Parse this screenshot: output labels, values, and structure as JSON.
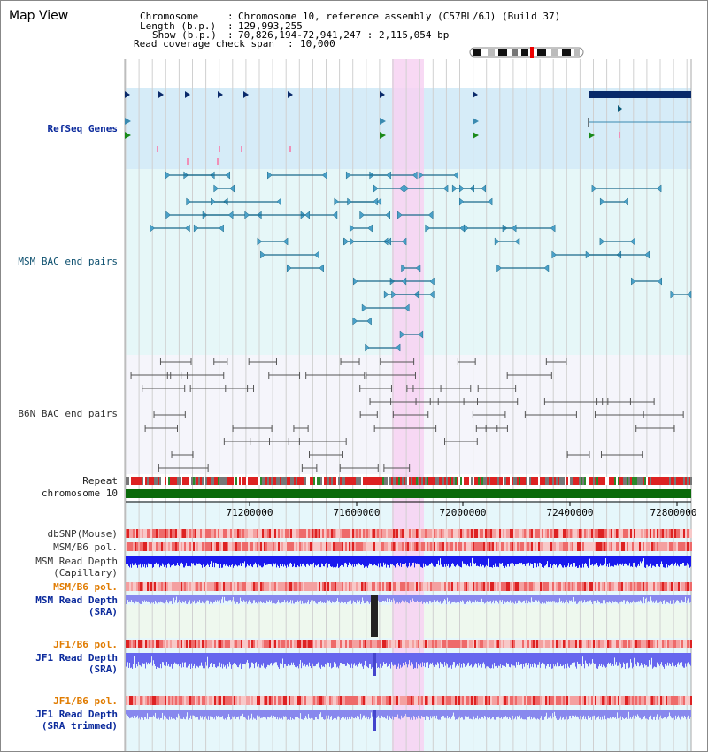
{
  "window": {
    "title": "Map View"
  },
  "info": {
    "chromosome_key": "Chromosome",
    "chromosome_val": "Chromosome 10, reference assembly (C57BL/6J) (Build 37)",
    "length_key": "Length (b.p.)",
    "length_val": "129,993,255",
    "show_key": "Show (b.p.)",
    "show_val": "70,826,194-72,941,247 : 2,115,054 bp",
    "span_key": "Read coverage check span",
    "span_val": "10,000"
  },
  "tracks": {
    "refseq": "RefSeq Genes",
    "msm_bac": "MSM BAC end pairs",
    "b6n_bac": "B6N BAC end pairs",
    "repeat": "Repeat",
    "chromosome": "chromosome 10",
    "dbsnp": "dbSNP(Mouse)",
    "msm_b6_pol_1": "MSM/B6 pol.",
    "msm_read_depth_cap": "MSM Read Depth\n(Capillary)",
    "msm_b6_pol_2": "MSM/B6 pol.",
    "msm_read_depth_sra": "MSM Read Depth\n(SRA)",
    "jf1_b6_pol_1": "JF1/B6 pol.",
    "jf1_read_depth_sra": "JF1 Read Depth\n(SRA)",
    "jf1_b6_pol_2": "JF1/B6 pol.",
    "jf1_read_depth_trim": "JF1 Read Depth\n(SRA trimmed)"
  },
  "axis": {
    "ticks": [
      "71200000",
      "71600000",
      "72000000",
      "72400000",
      "72800000"
    ]
  },
  "colors": {
    "highlight": "#f9d9f4",
    "refseq_bg": "#d6ecf8",
    "msm_bg": "#e6f7f8",
    "b6n_bg": "#f4f4fa",
    "chrom_bar": "#0a6a0a",
    "depth_blue": "#1a1aee",
    "depth_light": "#7777ee",
    "sra_bg": "#eef8ee"
  }
}
